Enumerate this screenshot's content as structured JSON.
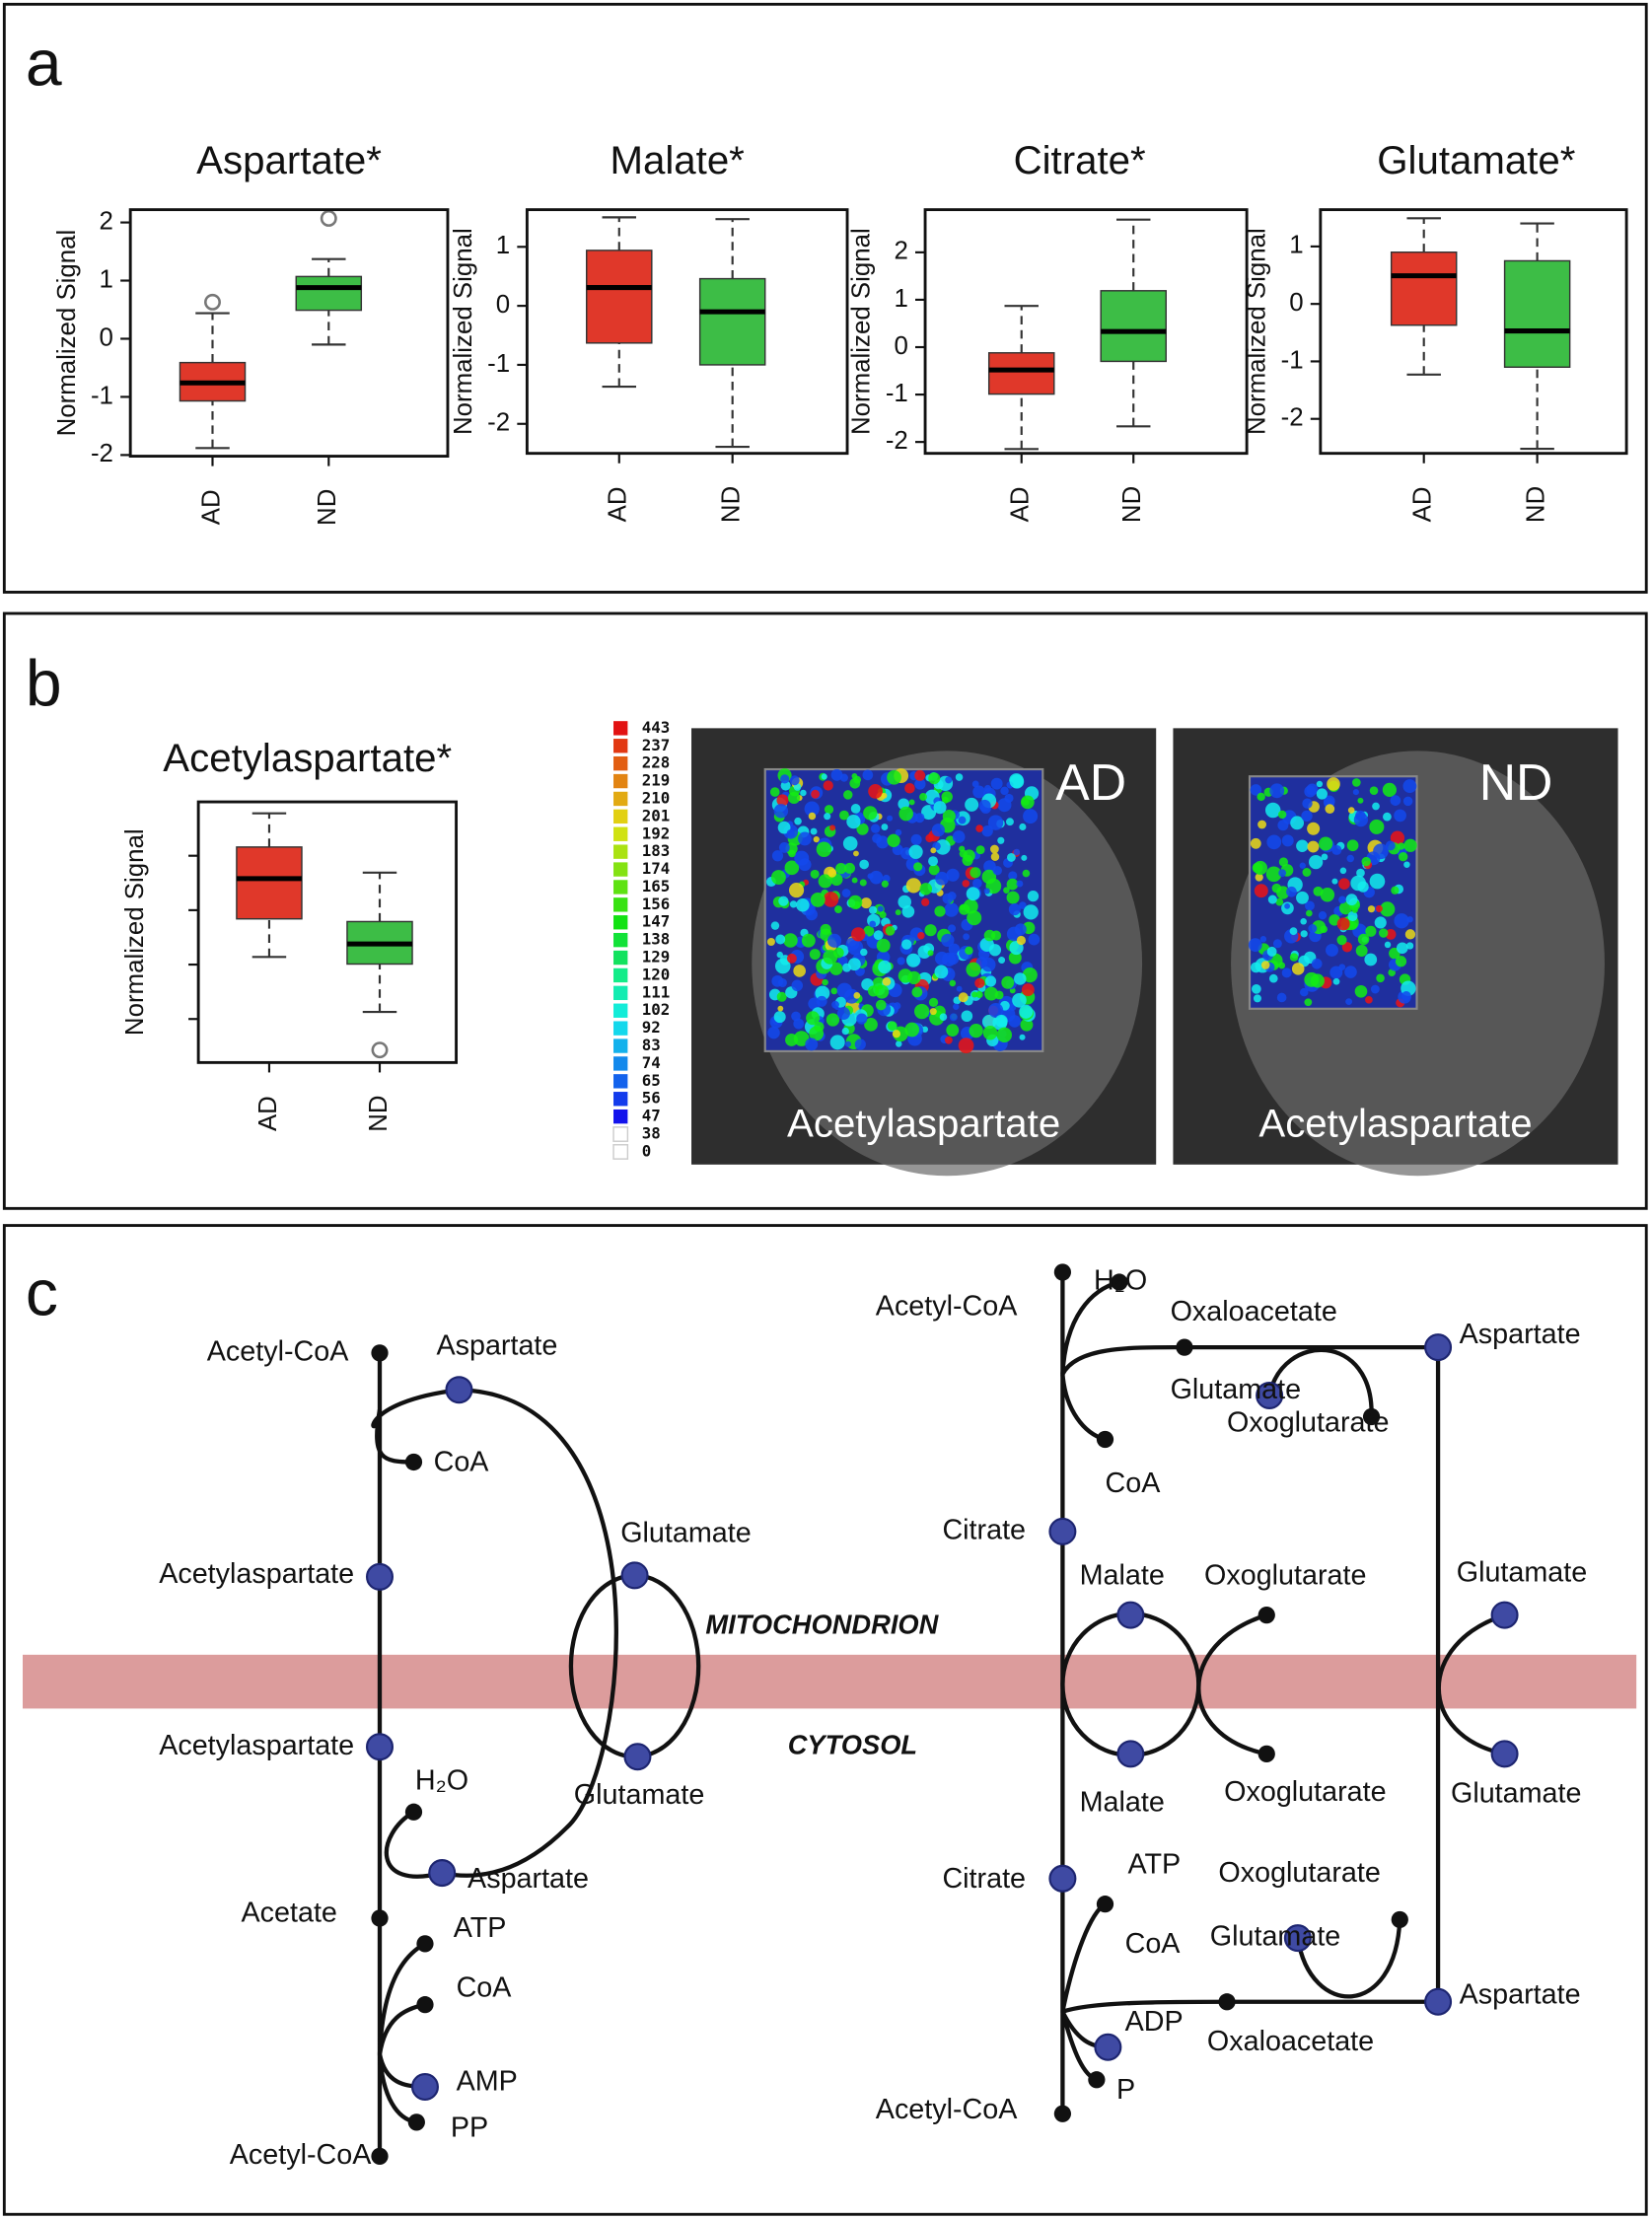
{
  "chart_data": [
    {
      "type": "box",
      "title": "Aspartate*",
      "y_label": "Normalized Signal",
      "categories": [
        "AD",
        "ND"
      ],
      "ylim": [
        -2.02,
        2.22
      ],
      "yticks": [
        -2,
        -1,
        0,
        1,
        2
      ],
      "boxes": [
        {
          "color": "#e0382a",
          "whisker_low": -1.88,
          "q1": -1.07,
          "median": -0.76,
          "q3": -0.41,
          "whisker_high": 0.44,
          "outliers": [
            0.63
          ]
        },
        {
          "color": "#3dbd46",
          "whisker_low": -0.1,
          "q1": 0.49,
          "median": 0.88,
          "q3": 1.07,
          "whisker_high": 1.37,
          "outliers": [
            2.07
          ]
        }
      ]
    },
    {
      "type": "box",
      "title": "Malate*",
      "y_label": "Normalized Signal",
      "categories": [
        "AD",
        "ND"
      ],
      "ylim": [
        -2.5,
        1.63
      ],
      "yticks": [
        -2,
        -1,
        0,
        1
      ],
      "boxes": [
        {
          "color": "#e0382a",
          "whisker_low": -1.37,
          "q1": -0.63,
          "median": 0.31,
          "q3": 0.94,
          "whisker_high": 1.5,
          "outliers": []
        },
        {
          "color": "#3dbd46",
          "whisker_low": -2.39,
          "q1": -1.0,
          "median": -0.1,
          "q3": 0.46,
          "whisker_high": 1.47,
          "outliers": []
        }
      ]
    },
    {
      "type": "box",
      "title": "Citrate*",
      "y_label": "Normalized Signal",
      "categories": [
        "AD",
        "ND"
      ],
      "ylim": [
        -2.24,
        2.9
      ],
      "yticks": [
        -2,
        -1,
        0,
        1,
        2
      ],
      "boxes": [
        {
          "color": "#e0382a",
          "whisker_low": -2.15,
          "q1": -0.99,
          "median": -0.48,
          "q3": -0.12,
          "whisker_high": 0.87,
          "outliers": []
        },
        {
          "color": "#3dbd46",
          "whisker_low": -1.67,
          "q1": -0.3,
          "median": 0.33,
          "q3": 1.19,
          "whisker_high": 2.69,
          "outliers": []
        }
      ]
    },
    {
      "type": "box",
      "title": "Glutamate*",
      "y_label": "Normalized Signal",
      "categories": [
        "AD",
        "ND"
      ],
      "ylim": [
        -2.6,
        1.64
      ],
      "yticks": [
        -2,
        -1,
        0,
        1
      ],
      "boxes": [
        {
          "color": "#e0382a",
          "whisker_low": -1.23,
          "q1": -0.37,
          "median": 0.49,
          "q3": 0.9,
          "whisker_high": 1.49,
          "outliers": []
        },
        {
          "color": "#3dbd46",
          "whisker_low": -2.52,
          "q1": -1.1,
          "median": -0.47,
          "q3": 0.75,
          "whisker_high": 1.4,
          "outliers": []
        }
      ]
    },
    {
      "type": "box",
      "title": "Acetylaspartate*",
      "y_label": "Normalized Signal",
      "categories": [
        "AD",
        "ND"
      ],
      "ylim": [
        -2.8,
        1.99
      ],
      "yticks": [
        -2,
        -1,
        0,
        1
      ],
      "ytick_labels": false,
      "boxes": [
        {
          "color": "#e0382a",
          "whisker_low": -0.86,
          "q1": -0.16,
          "median": 0.58,
          "q3": 1.16,
          "whisker_high": 1.78,
          "outliers": []
        },
        {
          "color": "#3dbd46",
          "whisker_low": -1.87,
          "q1": -0.99,
          "median": -0.62,
          "q3": -0.21,
          "whisker_high": 0.69,
          "outliers": [
            -2.57
          ]
        }
      ]
    }
  ],
  "panel_labels": [
    "a",
    "b",
    "c"
  ],
  "heatmap": {
    "colorbar": [
      443,
      237,
      228,
      219,
      210,
      201,
      192,
      183,
      174,
      165,
      156,
      147,
      138,
      129,
      120,
      111,
      102,
      92,
      83,
      74,
      65,
      56,
      47,
      38,
      0
    ],
    "images": [
      {
        "group": "AD",
        "metabolite": "Acetylaspartate"
      },
      {
        "group": "ND",
        "metabolite": "Acetylaspartate"
      }
    ]
  },
  "pathway": {
    "compartments": [
      "MITOCHONDRION",
      "CYTOSOL"
    ],
    "labels": [
      "Acetyl-CoA",
      "Aspartate",
      "CoA",
      "Acetylaspartate",
      "Glutamate",
      "Acetylaspartate",
      "H₂O",
      "Glutamate",
      "Aspartate",
      "Acetate",
      "ATP",
      "CoA",
      "AMP",
      "PP",
      "Acetyl-CoA",
      "Acetyl-CoA",
      "H₂O",
      "Oxaloacetate",
      "Aspartate",
      "Glutamate",
      "Oxoglutarate",
      "CoA",
      "Citrate",
      "Malate",
      "Oxoglutarate",
      "Glutamate",
      "Malate",
      "Oxoglutarate",
      "Glutamate",
      "Citrate",
      "ATP",
      "Oxoglutarate",
      "Glutamate",
      "CoA",
      "ADP",
      "Aspartate",
      "Oxaloacetate",
      "P",
      "Acetyl-CoA"
    ]
  }
}
